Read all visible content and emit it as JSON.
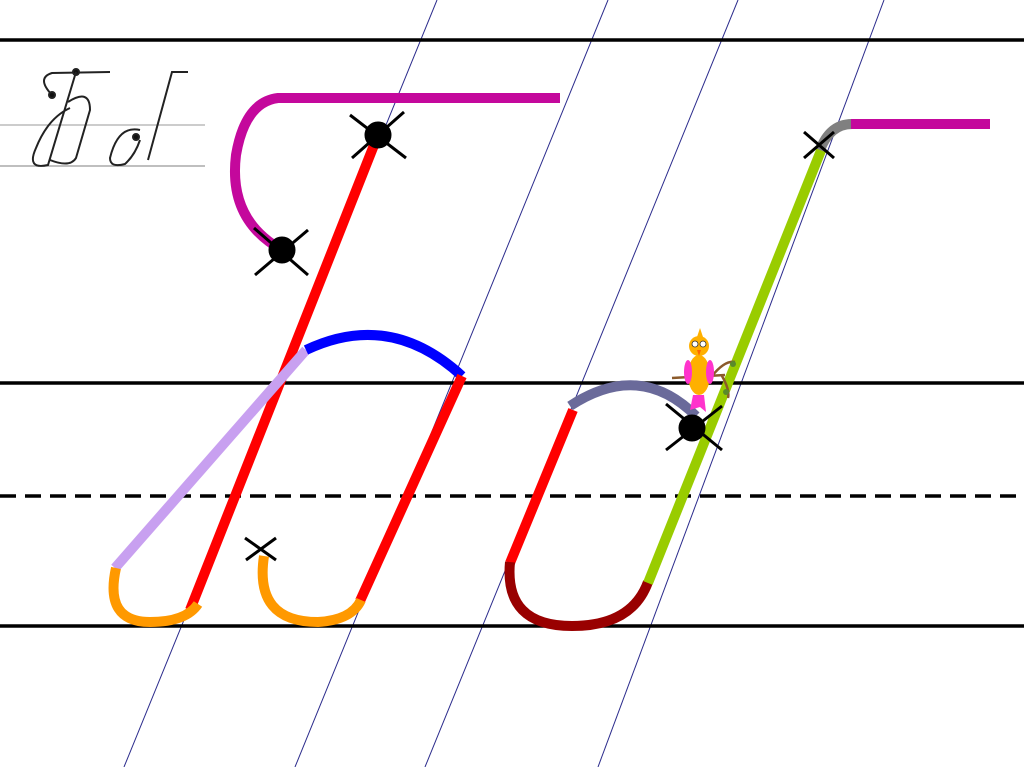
{
  "letters": [
    "Б",
    "б"
  ],
  "colors": {
    "ruling": "#000000",
    "slant_guides": "#2b2b8c",
    "top_hook": "#c4089c",
    "main_stem": "#ff0000",
    "bowl_top": "#0000ff",
    "loop_diagonal": "#c8a0f0",
    "bottom_hook": "#ff9900",
    "small_b_bowl_top": "#6a6a9a",
    "small_b_bowl_bottom": "#990000",
    "small_b_stem": "#99cc00",
    "small_b_top_joint": "#808080",
    "start_marker": "#000000"
  }
}
